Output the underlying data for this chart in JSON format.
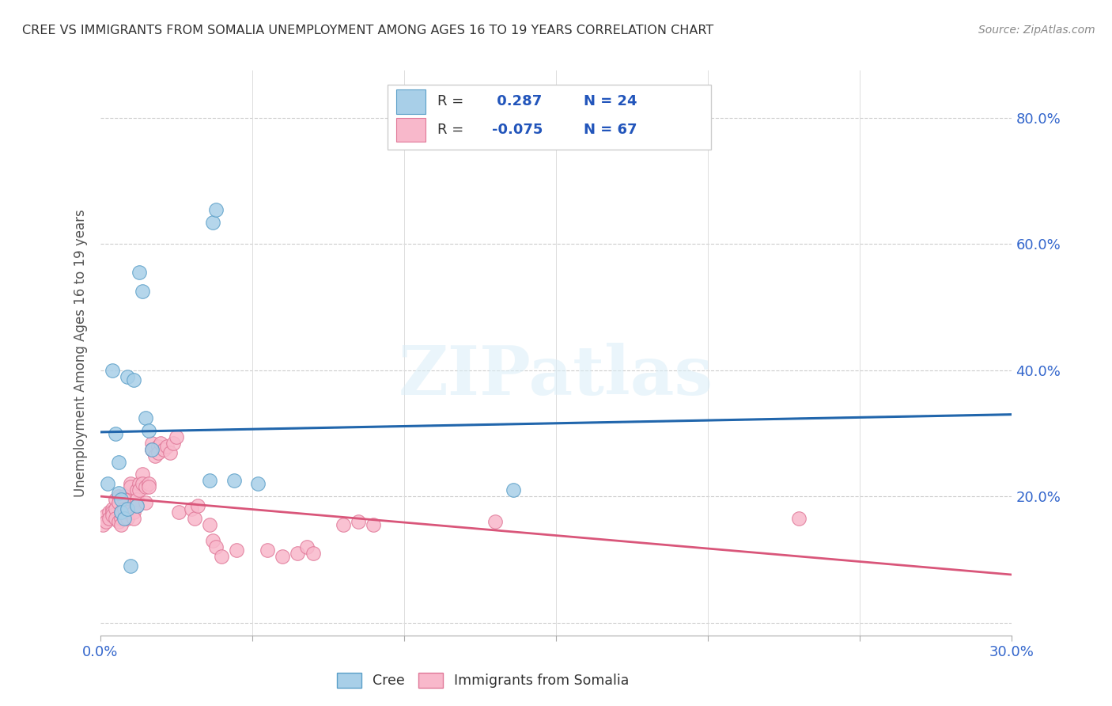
{
  "title": "CREE VS IMMIGRANTS FROM SOMALIA UNEMPLOYMENT AMONG AGES 16 TO 19 YEARS CORRELATION CHART",
  "source": "Source: ZipAtlas.com",
  "ylabel_label": "Unemployment Among Ages 16 to 19 years",
  "xlim": [
    0.0,
    0.3
  ],
  "ylim": [
    -0.02,
    0.875
  ],
  "xticks": [
    0.0,
    0.05,
    0.1,
    0.15,
    0.2,
    0.25,
    0.3
  ],
  "xtick_labels": [
    "0.0%",
    "",
    "",
    "",
    "",
    "",
    "30.0%"
  ],
  "yticks": [
    0.0,
    0.2,
    0.4,
    0.6,
    0.8
  ],
  "ytick_right_labels": [
    "",
    "20.0%",
    "40.0%",
    "60.0%",
    "80.0%"
  ],
  "cree_R": 0.287,
  "cree_N": 24,
  "somalia_R": -0.075,
  "somalia_N": 67,
  "cree_fill_color": "#a8cfe8",
  "cree_edge_color": "#5b9fc8",
  "somalia_fill_color": "#f8b8cb",
  "somalia_edge_color": "#e07898",
  "cree_line_color": "#2166ac",
  "somalia_line_color": "#d9567a",
  "dashed_line_color": "#b8d4e8",
  "right_label_color": "#3366cc",
  "legend_text_color": "#333333",
  "legend_value_color": "#2255bb",
  "watermark_color": "#daeef8",
  "cree_x": [
    0.0025,
    0.004,
    0.005,
    0.006,
    0.006,
    0.007,
    0.007,
    0.008,
    0.009,
    0.009,
    0.01,
    0.011,
    0.012,
    0.013,
    0.014,
    0.015,
    0.016,
    0.017,
    0.036,
    0.037,
    0.038,
    0.044,
    0.052,
    0.136
  ],
  "cree_y": [
    0.22,
    0.4,
    0.3,
    0.255,
    0.205,
    0.195,
    0.175,
    0.165,
    0.39,
    0.18,
    0.09,
    0.385,
    0.185,
    0.555,
    0.525,
    0.325,
    0.305,
    0.275,
    0.225,
    0.635,
    0.655,
    0.225,
    0.22,
    0.21
  ],
  "somalia_x": [
    0.001,
    0.002,
    0.002,
    0.003,
    0.003,
    0.004,
    0.004,
    0.004,
    0.005,
    0.005,
    0.005,
    0.006,
    0.006,
    0.006,
    0.007,
    0.007,
    0.007,
    0.008,
    0.008,
    0.008,
    0.009,
    0.009,
    0.01,
    0.01,
    0.011,
    0.011,
    0.012,
    0.012,
    0.012,
    0.013,
    0.013,
    0.014,
    0.014,
    0.015,
    0.015,
    0.016,
    0.016,
    0.017,
    0.017,
    0.018,
    0.019,
    0.019,
    0.02,
    0.021,
    0.022,
    0.023,
    0.024,
    0.025,
    0.026,
    0.03,
    0.031,
    0.032,
    0.036,
    0.037,
    0.038,
    0.04,
    0.045,
    0.055,
    0.06,
    0.065,
    0.068,
    0.07,
    0.08,
    0.085,
    0.09,
    0.13,
    0.23
  ],
  "somalia_y": [
    0.155,
    0.17,
    0.16,
    0.175,
    0.165,
    0.18,
    0.175,
    0.17,
    0.195,
    0.18,
    0.165,
    0.2,
    0.19,
    0.16,
    0.165,
    0.175,
    0.155,
    0.2,
    0.195,
    0.18,
    0.175,
    0.165,
    0.22,
    0.215,
    0.175,
    0.165,
    0.21,
    0.195,
    0.185,
    0.22,
    0.21,
    0.235,
    0.22,
    0.215,
    0.19,
    0.22,
    0.215,
    0.285,
    0.275,
    0.265,
    0.28,
    0.27,
    0.285,
    0.275,
    0.28,
    0.27,
    0.285,
    0.295,
    0.175,
    0.18,
    0.165,
    0.185,
    0.155,
    0.13,
    0.12,
    0.105,
    0.115,
    0.115,
    0.105,
    0.11,
    0.12,
    0.11,
    0.155,
    0.16,
    0.155,
    0.16,
    0.165
  ]
}
